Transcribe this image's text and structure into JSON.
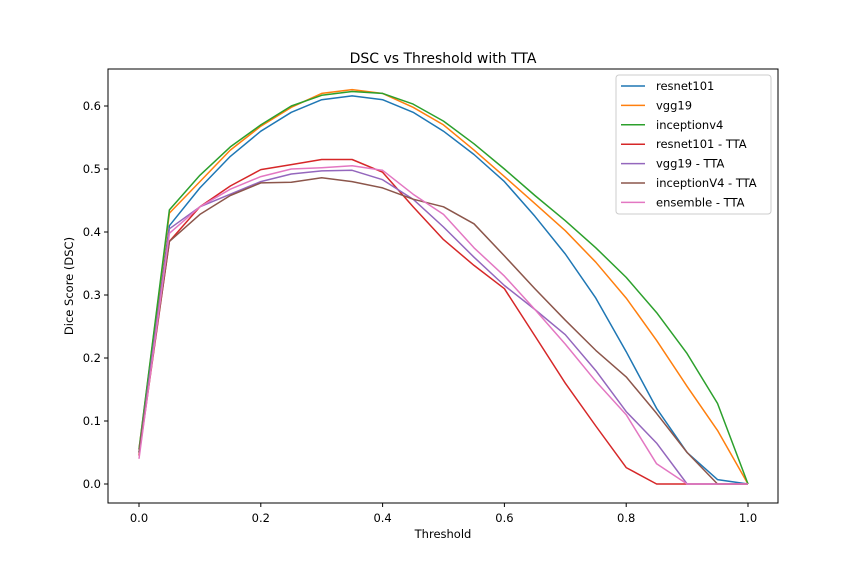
{
  "chart_data": {
    "type": "line",
    "title": "DSC vs Threshold with TTA",
    "xlabel": "Threshold",
    "ylabel": "Dice Score (DSC)",
    "xlim": [
      -0.05,
      1.05
    ],
    "ylim": [
      -0.03,
      0.66
    ],
    "xticks": [
      "0.0",
      "0.2",
      "0.4",
      "0.6",
      "0.8",
      "1.0"
    ],
    "xtick_values": [
      0.0,
      0.2,
      0.4,
      0.6,
      0.8,
      1.0
    ],
    "yticks": [
      "0.0",
      "0.1",
      "0.2",
      "0.3",
      "0.4",
      "0.5",
      "0.6"
    ],
    "ytick_values": [
      0.0,
      0.1,
      0.2,
      0.3,
      0.4,
      0.5,
      0.6
    ],
    "grid": false,
    "legend_position": "top-right",
    "x": [
      0.0,
      0.05,
      0.1,
      0.15,
      0.2,
      0.25,
      0.3,
      0.35,
      0.4,
      0.45,
      0.5,
      0.55,
      0.6,
      0.65,
      0.7,
      0.75,
      0.8,
      0.85,
      0.9,
      0.95,
      1.0
    ],
    "series": [
      {
        "name": "resnet101",
        "color": "#1f77b4",
        "values": [
          0.05,
          0.41,
          0.47,
          0.52,
          0.56,
          0.59,
          0.61,
          0.616,
          0.61,
          0.59,
          0.56,
          0.523,
          0.48,
          0.425,
          0.365,
          0.295,
          0.21,
          0.12,
          0.05,
          0.007,
          0.0
        ]
      },
      {
        "name": "vgg19",
        "color": "#ff7f0e",
        "values": [
          0.055,
          0.43,
          0.48,
          0.53,
          0.568,
          0.598,
          0.62,
          0.626,
          0.62,
          0.598,
          0.57,
          0.53,
          0.488,
          0.445,
          0.402,
          0.352,
          0.295,
          0.228,
          0.155,
          0.085,
          0.0
        ]
      },
      {
        "name": "inceptionv4",
        "color": "#2ca02c",
        "values": [
          0.055,
          0.435,
          0.49,
          0.535,
          0.57,
          0.6,
          0.617,
          0.623,
          0.62,
          0.603,
          0.576,
          0.54,
          0.5,
          0.458,
          0.418,
          0.375,
          0.328,
          0.272,
          0.207,
          0.128,
          0.0
        ]
      },
      {
        "name": "resnet101 - TTA",
        "color": "#d62728",
        "values": [
          0.045,
          0.385,
          0.44,
          0.473,
          0.499,
          0.507,
          0.515,
          0.515,
          0.495,
          0.44,
          0.388,
          0.347,
          0.31,
          0.235,
          0.16,
          0.092,
          0.026,
          0.0,
          0.0,
          0.0,
          0.0
        ]
      },
      {
        "name": "vgg19 - TTA",
        "color": "#9467bd",
        "values": [
          0.05,
          0.405,
          0.44,
          0.46,
          0.48,
          0.492,
          0.497,
          0.498,
          0.483,
          0.452,
          0.408,
          0.36,
          0.315,
          0.277,
          0.237,
          0.18,
          0.115,
          0.065,
          0.0,
          0.0,
          0.0
        ]
      },
      {
        "name": "inceptionV4 - TTA",
        "color": "#8c564b",
        "values": [
          0.05,
          0.385,
          0.428,
          0.458,
          0.478,
          0.479,
          0.486,
          0.48,
          0.47,
          0.452,
          0.44,
          0.413,
          0.362,
          0.31,
          0.26,
          0.212,
          0.17,
          0.112,
          0.05,
          0.0,
          0.0
        ]
      },
      {
        "name": "ensemble - TTA",
        "color": "#e377c2",
        "values": [
          0.04,
          0.398,
          0.44,
          0.468,
          0.488,
          0.5,
          0.502,
          0.505,
          0.498,
          0.46,
          0.428,
          0.375,
          0.33,
          0.277,
          0.222,
          0.163,
          0.11,
          0.032,
          0.0,
          0.0,
          0.0
        ]
      }
    ]
  }
}
